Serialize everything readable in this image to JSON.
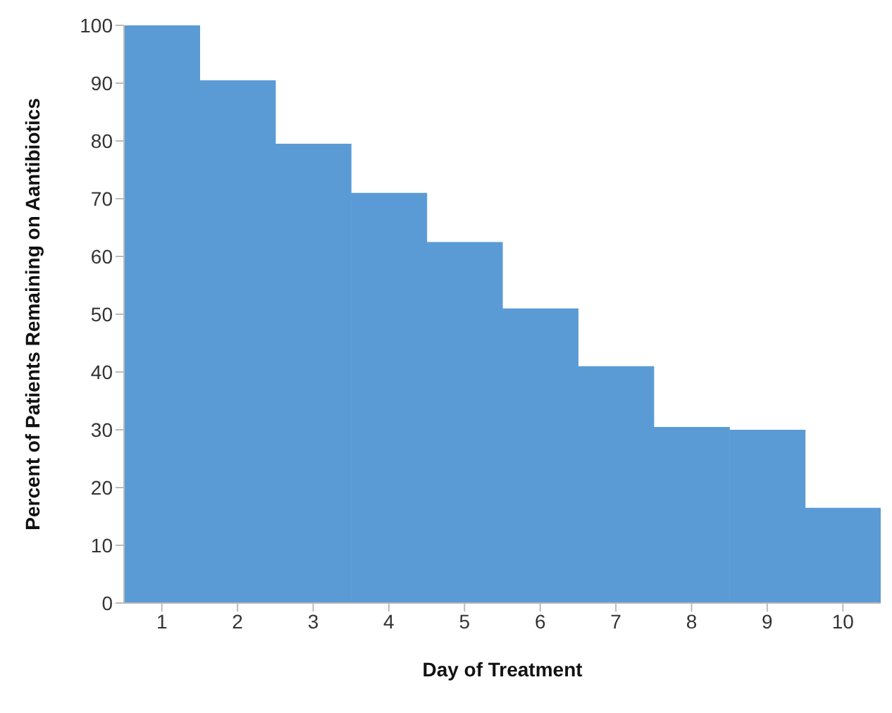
{
  "chart_data": {
    "type": "bar",
    "xlabel": "Day of Treatment",
    "ylabel": "Percent of Patients Remaining on Aantibiotics",
    "categories": [
      "1",
      "2",
      "3",
      "4",
      "5",
      "6",
      "7",
      "8",
      "9",
      "10"
    ],
    "values": [
      100,
      90.5,
      79.5,
      71,
      62.5,
      51,
      41,
      30.5,
      30,
      16.5
    ],
    "color": "#5b9bd5",
    "ylim": [
      0,
      100
    ],
    "yticks": [
      0,
      10,
      20,
      30,
      40,
      50,
      60,
      70,
      80,
      90,
      100
    ],
    "grid": false
  }
}
